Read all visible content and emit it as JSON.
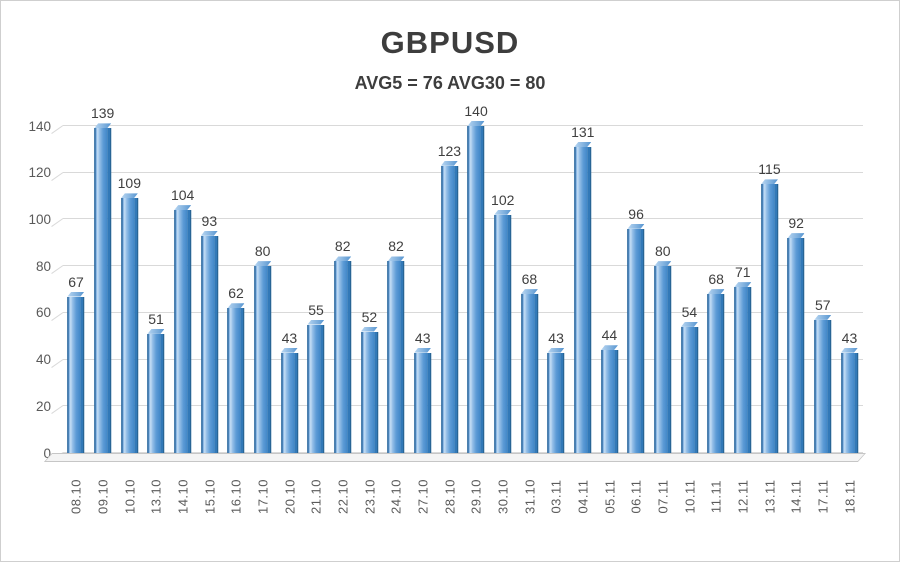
{
  "chart_data": {
    "type": "bar",
    "style": "3d-column",
    "title": "GBPUSD",
    "subtitle": "AVG5 = 76 AVG30 = 80",
    "avg5": 76,
    "avg30": 80,
    "categories": [
      "08.10",
      "09.10",
      "10.10",
      "13.10",
      "14.10",
      "15.10",
      "16.10",
      "17.10",
      "20.10",
      "21.10",
      "22.10",
      "23.10",
      "24.10",
      "27.10",
      "28.10",
      "29.10",
      "30.10",
      "31.10",
      "03.11",
      "04.11",
      "05.11",
      "06.11",
      "07.11",
      "10.11",
      "11.11",
      "12.11",
      "13.11",
      "14.11",
      "17.11",
      "18.11"
    ],
    "values": [
      67,
      139,
      109,
      51,
      104,
      93,
      62,
      80,
      43,
      55,
      82,
      52,
      82,
      43,
      123,
      140,
      102,
      68,
      43,
      131,
      44,
      96,
      80,
      54,
      68,
      71,
      115,
      92,
      57,
      43
    ],
    "xlabel": "",
    "ylabel": "",
    "ylim": [
      0,
      140
    ],
    "yticks": [
      0,
      20,
      40,
      60,
      80,
      100,
      120,
      140
    ],
    "grid": "horizontal",
    "legend": "none",
    "colors": {
      "bar_face": "#4E94D1",
      "bar_highlight": "#C7DFF5",
      "bar_side": "#3279B8",
      "bar_edge": "#2B689F",
      "gridline": "#D9D9D9",
      "value_label": "#3F3F3F",
      "axis_label": "#595959",
      "title_text": "#3D3D3D",
      "background": "#FFFFFF"
    }
  }
}
